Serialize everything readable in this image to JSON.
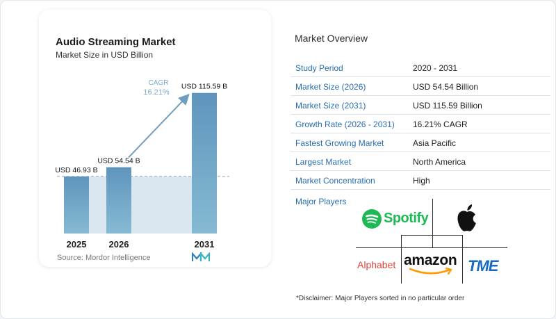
{
  "chart_card": {
    "title": "Audio Streaming Market",
    "subtitle": "Market Size in USD Billion",
    "source": "Source: Mordor Intelligence"
  },
  "chart_data": {
    "type": "bar",
    "title": "Audio Streaming Market",
    "subtitle": "Market Size in USD Billion",
    "categories": [
      "2025",
      "2026",
      "2031"
    ],
    "values": [
      46.93,
      54.54,
      115.59
    ],
    "data_labels": [
      "USD 46.93 B",
      "USD 54.54 B",
      "USD 115.59 B"
    ],
    "ylim": [
      0,
      120
    ],
    "cagr_label": "CAGR",
    "cagr_value": "16.21%",
    "bar_color": "#6a9fc2",
    "bar_color_bottom": "#7eb3cf",
    "band_color": "#dbe7f0",
    "arrow_color": "#6f9fc0",
    "cagr_color": "#7aa8c8"
  },
  "overview": {
    "title": "Market Overview",
    "rows": [
      {
        "label": "Study Period",
        "value": "2020 - 2031"
      },
      {
        "label": "Market Size (2026)",
        "value": "USD 54.54 Billion"
      },
      {
        "label": "Market Size (2031)",
        "value": "USD 115.59 Billion"
      },
      {
        "label": "Growth Rate (2026 - 2031)",
        "value": "16.21% CAGR"
      },
      {
        "label": "Fastest Growing Market",
        "value": "Asia Pacific"
      },
      {
        "label": "Largest Market",
        "value": "North America"
      },
      {
        "label": "Market Concentration",
        "value": "High"
      }
    ],
    "players_label": "Major Players",
    "players": {
      "spotify": "Spotify",
      "alphabet": "Alphabet",
      "amazon": "amazon",
      "apple": "apple-logo-icon",
      "tme": "TME"
    },
    "disclaimer": "*Disclaimer: Major Players sorted in no particular order"
  },
  "colors": {
    "accent_blue": "#2a6fb0",
    "spotify_green": "#1db954",
    "alphabet_red": "#e0433a",
    "amazon_orange": "#ff9900",
    "tme_blue": "#1769c2"
  }
}
